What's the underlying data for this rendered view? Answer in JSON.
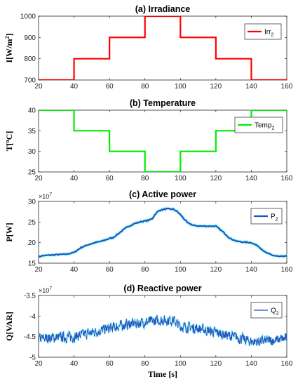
{
  "colors": {
    "irradiance": "#ff0000",
    "temperature": "#00ee00",
    "active_power": "#2255bb",
    "reactive_power": "#2255bb",
    "band": "#7fffff"
  },
  "xlabel": "Time [s]",
  "chart_data": [
    {
      "type": "line",
      "title": "(a) Irradiance",
      "ylabel": "I[W/m2]",
      "ylabel_main": "I[W/m",
      "ylabel_sup": "2",
      "ylabel_end": "]",
      "xlim": [
        20,
        160
      ],
      "ylim": [
        700,
        1000
      ],
      "yticks": [
        700,
        800,
        900,
        1000
      ],
      "xticks": [
        20,
        40,
        60,
        80,
        100,
        120,
        140,
        160
      ],
      "grid": false,
      "legend_position": "right",
      "series": [
        {
          "name": "Irr2",
          "name_main": "Irr",
          "name_sub": "2",
          "x": [
            20,
            40,
            40,
            60,
            60,
            80,
            80,
            100,
            100,
            120,
            120,
            140,
            140,
            160
          ],
          "y": [
            700,
            700,
            800,
            800,
            900,
            900,
            1000,
            1000,
            900,
            900,
            800,
            800,
            700,
            700
          ]
        }
      ]
    },
    {
      "type": "line",
      "title": "(b) Temperature",
      "ylabel": "T[oC]",
      "ylabel_main": "T[",
      "ylabel_sup": "o",
      "ylabel_end": "C]",
      "xlim": [
        20,
        160
      ],
      "ylim": [
        25,
        40
      ],
      "yticks": [
        25,
        30,
        35,
        40
      ],
      "xticks": [
        20,
        40,
        60,
        80,
        100,
        120,
        140,
        160
      ],
      "grid": false,
      "legend_position": "top-right",
      "series": [
        {
          "name": "Temp2",
          "name_main": "Temp",
          "name_sub": "2",
          "x": [
            20,
            40,
            40,
            60,
            60,
            80,
            80,
            100,
            100,
            120,
            120,
            140,
            140,
            160
          ],
          "y": [
            40,
            40,
            35,
            35,
            30,
            30,
            25,
            25,
            30,
            30,
            35,
            35,
            40,
            40
          ]
        }
      ]
    },
    {
      "type": "line",
      "title": "(c)  Active power",
      "ylabel": "P[W]",
      "ylabel_main": "P[W]",
      "ylabel_sup": "",
      "ylabel_end": "",
      "exponent_base": "×10",
      "exponent_power": "7",
      "xlim": [
        20,
        160
      ],
      "ylim": [
        15,
        30
      ],
      "yticks": [
        15,
        20,
        25,
        30
      ],
      "xticks": [
        20,
        40,
        60,
        80,
        100,
        120,
        140,
        160
      ],
      "grid": false,
      "legend_position": "top-right",
      "series": [
        {
          "name": "P2",
          "name_main": "P",
          "name_sub": "2",
          "x": [
            20,
            22,
            28,
            36,
            40,
            44,
            48,
            52,
            56,
            60,
            62,
            66,
            70,
            74,
            78,
            82,
            84,
            86,
            88,
            92,
            96,
            98,
            100,
            104,
            108,
            112,
            116,
            120,
            124,
            128,
            132,
            136,
            140,
            144,
            148,
            152,
            156,
            160
          ],
          "y": [
            16.5,
            16.8,
            17.0,
            17.2,
            17.6,
            18.8,
            19.5,
            20.0,
            20.4,
            21.0,
            21.2,
            22.5,
            23.8,
            24.6,
            25.1,
            25.4,
            25.8,
            27.0,
            27.8,
            28.2,
            28.1,
            27.6,
            26.8,
            24.8,
            24.1,
            24.0,
            24.0,
            24.0,
            22.6,
            21.0,
            20.3,
            20.1,
            20.0,
            19.1,
            17.6,
            16.9,
            16.6,
            16.7
          ]
        }
      ]
    },
    {
      "type": "line",
      "title": "(d) Reactive power",
      "ylabel": "Q[VAR]",
      "ylabel_main": "Q[VAR]",
      "ylabel_sup": "",
      "ylabel_end": "",
      "exponent_base": "×10",
      "exponent_power": "7",
      "xlim": [
        20,
        160
      ],
      "ylim": [
        -5,
        -3.5
      ],
      "yticks": [
        -5,
        -4.5,
        -4,
        -3.5
      ],
      "xticks": [
        20,
        40,
        60,
        80,
        100,
        120,
        140,
        160
      ],
      "grid": false,
      "legend_position": "top-right",
      "noise_amplitude": 0.16,
      "series": [
        {
          "name": "Q2",
          "name_main": "Q",
          "name_sub": "2",
          "x": [
            20,
            30,
            40,
            50,
            60,
            70,
            80,
            90,
            96,
            100,
            110,
            120,
            130,
            140,
            150,
            160
          ],
          "y": [
            -4.55,
            -4.52,
            -4.5,
            -4.4,
            -4.3,
            -4.2,
            -4.15,
            -4.1,
            -4.1,
            -4.25,
            -4.3,
            -4.4,
            -4.5,
            -4.62,
            -4.6,
            -4.55
          ]
        }
      ]
    }
  ]
}
